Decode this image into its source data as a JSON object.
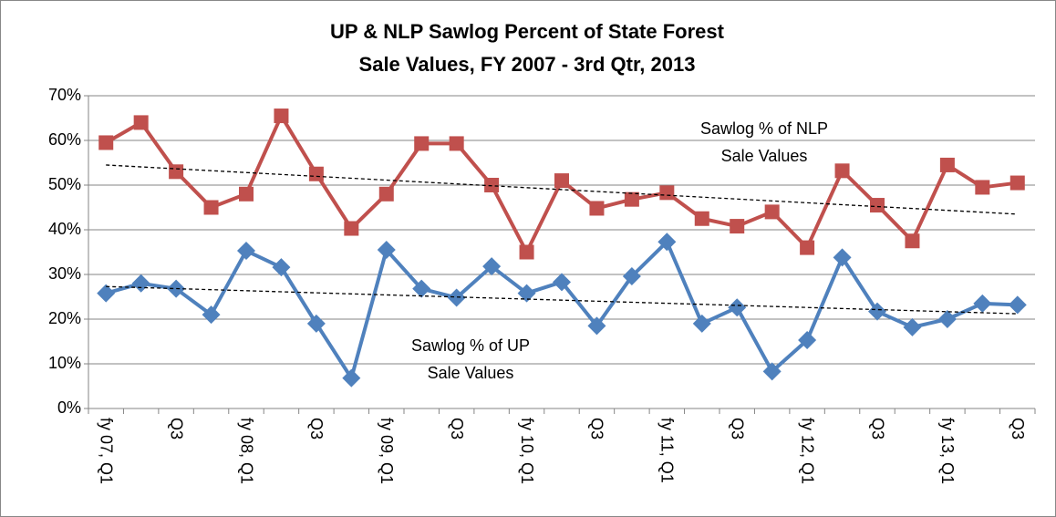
{
  "chart_data": {
    "type": "line",
    "title": [
      "UP & NLP Sawlog Percent of State Forest",
      "Sale Values, FY 2007 - 3rd Qtr, 2013"
    ],
    "categories": [
      "fy 07, Q1",
      null,
      "Q3",
      null,
      "fy 08, Q1",
      null,
      "Q3",
      null,
      "fy 09, Q1",
      null,
      "Q3",
      null,
      "fy 10, Q1",
      null,
      "Q3",
      null,
      "fy 11, Q1",
      null,
      "Q3",
      null,
      "fy 12, Q1",
      null,
      "Q3",
      null,
      "fy 13, Q1",
      null,
      "Q3"
    ],
    "series": [
      {
        "name": "Sawlog % of NLP Sale Values",
        "color": "#c0504d",
        "marker": "square",
        "values": [
          59.5,
          64,
          53,
          45,
          48,
          65.5,
          52.5,
          40.3,
          48,
          59.3,
          59.3,
          50,
          35,
          51,
          44.8,
          46.8,
          48.3,
          42.5,
          40.8,
          44,
          36,
          53.2,
          45.5,
          37.5,
          54.5,
          49.5,
          50.5
        ],
        "trend": [
          54.5,
          43.5
        ]
      },
      {
        "name": "Sawlog % of UP Sale Values",
        "color": "#4f81bd",
        "marker": "diamond",
        "values": [
          25.8,
          28,
          26.8,
          21,
          35.3,
          31.6,
          19,
          6.8,
          35.5,
          26.8,
          24.8,
          31.8,
          25.8,
          28.3,
          18.5,
          29.6,
          37.3,
          19,
          22.6,
          8.3,
          15.3,
          33.8,
          21.7,
          18.2,
          20,
          23.5,
          23.2
        ],
        "trend": [
          27.3,
          21.2
        ]
      }
    ],
    "annotations": [
      [
        "Sawlog % of NLP",
        "Sale Values"
      ],
      [
        "Sawlog % of UP",
        "Sale Values"
      ]
    ],
    "ylim": [
      0,
      70
    ],
    "yticks": [
      {
        "value": 0,
        "label": "0%"
      },
      {
        "value": 10,
        "label": "10%"
      },
      {
        "value": 20,
        "label": "20%"
      },
      {
        "value": 30,
        "label": "30%"
      },
      {
        "value": 40,
        "label": "40%"
      },
      {
        "value": 50,
        "label": "50%"
      },
      {
        "value": 60,
        "label": "60%"
      },
      {
        "value": 70,
        "label": "70%"
      }
    ],
    "grid": true
  }
}
